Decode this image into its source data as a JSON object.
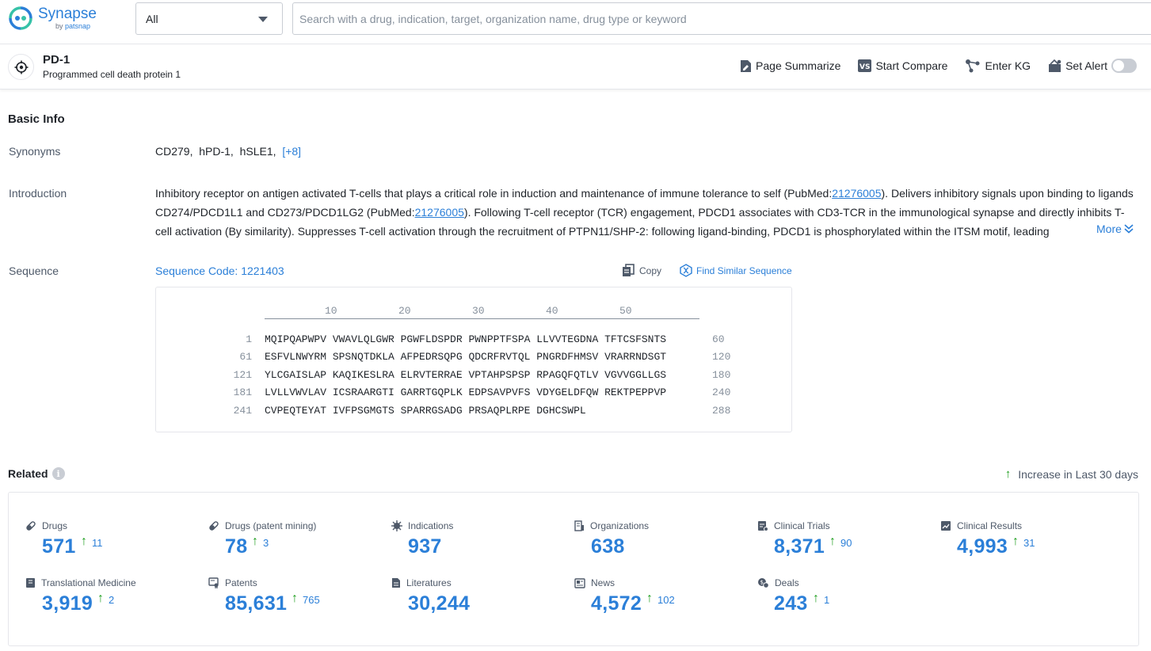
{
  "brand": {
    "name": "Synapse",
    "by": "by",
    "by_brand": "patsnap",
    "accent": "#2b7fd8"
  },
  "search": {
    "scope_selected": "All",
    "placeholder": "Search with a drug, indication, target, organization name, drug type or keyword",
    "value": ""
  },
  "header": {
    "title": "PD-1",
    "subtitle": "Programmed cell death protein 1",
    "actions": {
      "summarize": "Page Summarize",
      "compare": "Start Compare",
      "kg": "Enter KG",
      "alert": "Set Alert",
      "alert_on": false
    }
  },
  "basic_info": {
    "title": "Basic Info",
    "synonyms_label": "Synonyms",
    "synonyms": [
      "CD279,",
      "hPD-1,",
      "hSLE1,"
    ],
    "synonyms_more": "[+8]",
    "intro_label": "Introduction",
    "intro": {
      "p1": "Inhibitory receptor on antigen activated T-cells that plays a critical role in induction and maintenance of immune tolerance to self (PubMed:",
      "ref1": "21276005",
      "p2": "). Delivers inhibitory signals upon binding to ligands CD274/PDCD1L1 and CD273/PDCD1LG2 (PubMed:",
      "ref2": "21276005",
      "p3": "). Following T-cell receptor (TCR) engagement, PDCD1 associates with CD3-TCR in the immunological synapse and directly inhibits T-cell activation (By similarity). Suppresses T-cell activation through the recruitment of PTPN11/SHP-2: following ligand-binding, PDCD1 is phosphorylated within the ITSM motif, leading"
    },
    "more": "More",
    "sequence_label": "Sequence",
    "sequence_code": "Sequence Code: 1221403",
    "copy": "Copy",
    "find_similar": "Find Similar Sequence",
    "ruler": [
      "10",
      "20",
      "30",
      "40",
      "50"
    ],
    "rows": [
      {
        "start": "1",
        "seq": "MQIPQAPWPV VWAVLQLGWR PGWFLDSPDR PWNPPTFSPA LLVVTEGDNA TFTCSFSNTS",
        "end": "60"
      },
      {
        "start": "61",
        "seq": "ESFVLNWYRM SPSNQTDKLA AFPEDRSQPG QDCRFRVTQL PNGRDFHMSV VRARRNDSGT",
        "end": "120"
      },
      {
        "start": "121",
        "seq": "YLCGAISLAP KAQIKESLRA ELRVTERRAE VPTAHPSPSP RPAGQFQTLV VGVVGGLLGS",
        "end": "180"
      },
      {
        "start": "181",
        "seq": "LVLLVWVLAV ICSRAARGTI GARRTGQPLK EDPSAVPVFS VDYGELDFQW REKTPEPPVP",
        "end": "240"
      },
      {
        "start": "241",
        "seq": "CVPEQTEYAT IVFPSGMGTS SPARRGSADG PRSAQPLRPE DGHCSWPL",
        "end": "288"
      }
    ]
  },
  "related": {
    "title": "Related",
    "increase_legend": "Increase in Last 30 days",
    "increase_color": "#23a023",
    "stats": [
      {
        "label": "Drugs",
        "value": "571",
        "inc": "11",
        "icon": "pill-icon"
      },
      {
        "label": "Drugs (patent mining)",
        "value": "78",
        "inc": "3",
        "icon": "pill-icon"
      },
      {
        "label": "Indications",
        "value": "937",
        "inc": "",
        "icon": "virus-icon"
      },
      {
        "label": "Organizations",
        "value": "638",
        "inc": "",
        "icon": "building-icon"
      },
      {
        "label": "Clinical Trials",
        "value": "8,371",
        "inc": "90",
        "icon": "clipboard-icon"
      },
      {
        "label": "Clinical Results",
        "value": "4,993",
        "inc": "31",
        "icon": "chart-doc-icon"
      },
      {
        "label": "Translational Medicine",
        "value": "3,919",
        "inc": "2",
        "icon": "book-icon"
      },
      {
        "label": "Patents",
        "value": "85,631",
        "inc": "765",
        "icon": "patent-icon"
      },
      {
        "label": "Literatures",
        "value": "30,244",
        "inc": "",
        "icon": "document-icon"
      },
      {
        "label": "News",
        "value": "4,572",
        "inc": "102",
        "icon": "newspaper-icon"
      },
      {
        "label": "Deals",
        "value": "243",
        "inc": "1",
        "icon": "deal-icon"
      }
    ]
  }
}
